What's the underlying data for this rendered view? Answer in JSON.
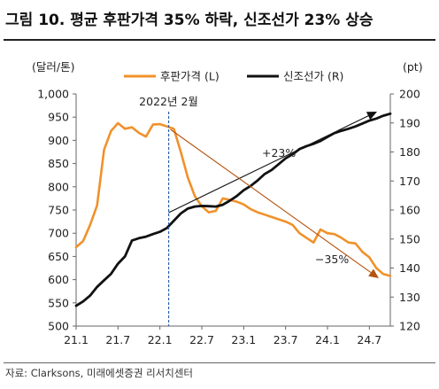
{
  "figure": {
    "title": "그림 10. 평균 후판가격 35% 하락, 신조선가 23% 상승",
    "source": "자료: Clarksons, 미래에셋증권 리서치센터"
  },
  "colors": {
    "series_left": "#f0912a",
    "series_right": "#111111",
    "arrow_up": "#111111",
    "arrow_down": "#b5530f",
    "vline": "#2d5fa8"
  },
  "chart_data": {
    "type": "line",
    "left_axis_unit": "(달러/톤)",
    "right_axis_unit": "(pt)",
    "ylim_left": [
      500,
      1000
    ],
    "ylim_right": [
      120,
      200
    ],
    "left_ticks": [
      "500",
      "550",
      "600",
      "650",
      "700",
      "750",
      "800",
      "850",
      "900",
      "950",
      "1,000"
    ],
    "right_ticks": [
      "120",
      "130",
      "140",
      "150",
      "160",
      "170",
      "180",
      "190",
      "200"
    ],
    "x_ticks": [
      "21.1",
      "21.7",
      "22.1",
      "22.7",
      "23.1",
      "23.7",
      "24.1",
      "24.7"
    ],
    "x_tick_months": [
      0,
      6,
      12,
      18,
      24,
      30,
      36,
      42
    ],
    "xlim_months": [
      0,
      45
    ],
    "series": [
      {
        "name": "후판가격 (L)",
        "axis": "left",
        "x_months": [
          0,
          1,
          2,
          3,
          4,
          5,
          6,
          7,
          8,
          9,
          10,
          11,
          12,
          13,
          14,
          15,
          16,
          17,
          18,
          19,
          20,
          21,
          22,
          23,
          24,
          25,
          26,
          27,
          28,
          29,
          30,
          31,
          32,
          33,
          34,
          35,
          36,
          37,
          38,
          39,
          40,
          41,
          42,
          43,
          44,
          45
        ],
        "values": [
          670,
          683,
          718,
          760,
          880,
          920,
          937,
          925,
          928,
          916,
          908,
          934,
          935,
          930,
          925,
          875,
          820,
          780,
          758,
          745,
          748,
          775,
          772,
          768,
          762,
          752,
          745,
          740,
          735,
          730,
          725,
          718,
          700,
          690,
          680,
          708,
          700,
          698,
          690,
          680,
          678,
          660,
          648,
          625,
          612,
          608
        ]
      },
      {
        "name": "신조선가 (R)",
        "axis": "right",
        "x_months": [
          0,
          1,
          2,
          3,
          4,
          5,
          6,
          7,
          8,
          9,
          10,
          11,
          12,
          13,
          14,
          15,
          16,
          17,
          18,
          19,
          20,
          21,
          22,
          23,
          24,
          25,
          26,
          27,
          28,
          29,
          30,
          31,
          32,
          33,
          34,
          35,
          36,
          37,
          38,
          39,
          40,
          41,
          42,
          43,
          44,
          45
        ],
        "values": [
          127.0,
          128.5,
          130.5,
          133.5,
          135.8,
          138.0,
          141.5,
          144.0,
          149.5,
          150.3,
          150.8,
          151.7,
          152.5,
          153.8,
          156.3,
          158.8,
          160.5,
          161.2,
          161.4,
          161.3,
          161.2,
          161.8,
          163.2,
          164.8,
          166.8,
          168.3,
          170.2,
          172.4,
          173.8,
          175.8,
          177.8,
          179.2,
          181.0,
          182.0,
          182.8,
          183.8,
          185.2,
          186.5,
          187.3,
          188.0,
          188.8,
          189.8,
          190.8,
          191.5,
          192.5,
          193.2
        ]
      }
    ],
    "annotations": {
      "vline_label": "2022년 2월",
      "vline_month": 13,
      "up_label": "+23%",
      "down_label": "−35%"
    },
    "legend_position": "top-center"
  }
}
